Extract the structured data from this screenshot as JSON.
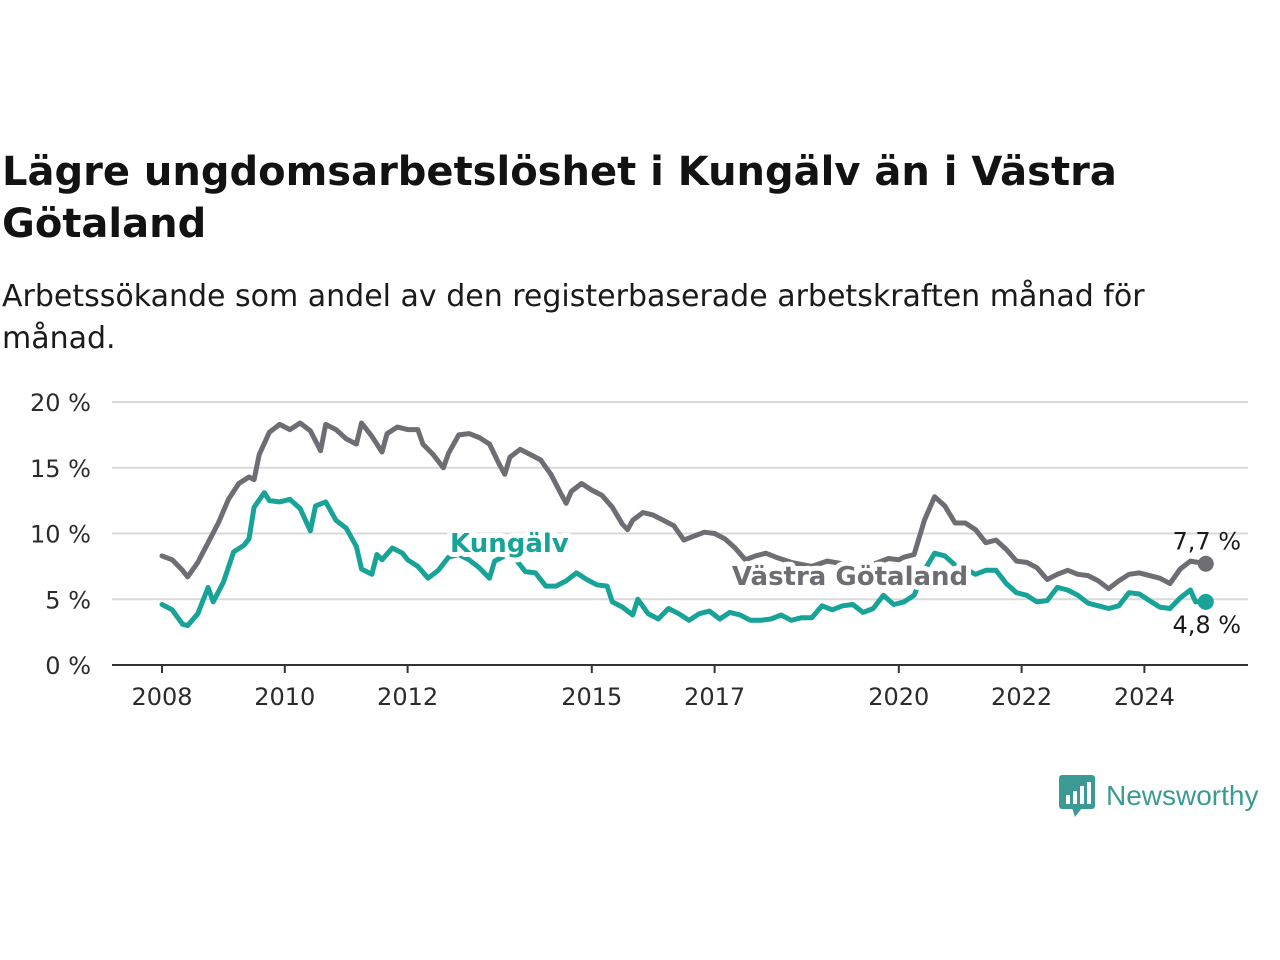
{
  "title": "Lägre ungdomsarbetslöshet i Kungälv än i Västra Götaland",
  "subtitle": "Arbetssökande som andel av den registerbaserade arbetskraften månad för månad.",
  "brand": {
    "name": "Newsworthy",
    "icon": "newsworthy-logo-icon",
    "color": "#3b9b94"
  },
  "chart_data": {
    "type": "line",
    "title": "Lägre ungdomsarbetslöshet i Kungälv än i Västra Götaland",
    "subtitle": "Arbetssökande som andel av den registerbaserade arbetskraften månad för månad.",
    "xlabel": "",
    "ylabel": "",
    "xlim": [
      "2008-01",
      "2025-09"
    ],
    "ylim": [
      0,
      20
    ],
    "grid": true,
    "x_ticks": [
      {
        "x": "2008-01",
        "label": "2008"
      },
      {
        "x": "2010-01",
        "label": "2010"
      },
      {
        "x": "2012-01",
        "label": "2012"
      },
      {
        "x": "2015-01",
        "label": "2015"
      },
      {
        "x": "2017-01",
        "label": "2017"
      },
      {
        "x": "2020-01",
        "label": "2020"
      },
      {
        "x": "2022-01",
        "label": "2022"
      },
      {
        "x": "2024-01",
        "label": "2024"
      }
    ],
    "y_ticks": [
      {
        "v": 0,
        "label": "0 %"
      },
      {
        "v": 5,
        "label": "5 %"
      },
      {
        "v": 10,
        "label": "10 %"
      },
      {
        "v": 15,
        "label": "15 %"
      },
      {
        "v": 20,
        "label": "20 %"
      }
    ],
    "series": [
      {
        "name": "Västra Götaland",
        "color": "#6e6d73",
        "end_label": "7,7 %",
        "points": [
          [
            "2008-01",
            8.3
          ],
          [
            "2008-03",
            8.0
          ],
          [
            "2008-05",
            7.2
          ],
          [
            "2008-06",
            6.7
          ],
          [
            "2008-08",
            7.8
          ],
          [
            "2008-10",
            9.3
          ],
          [
            "2008-12",
            10.8
          ],
          [
            "2009-02",
            12.6
          ],
          [
            "2009-04",
            13.8
          ],
          [
            "2009-06",
            14.3
          ],
          [
            "2009-07",
            14.1
          ],
          [
            "2009-08",
            16.0
          ],
          [
            "2009-10",
            17.7
          ],
          [
            "2009-12",
            18.3
          ],
          [
            "2010-02",
            17.9
          ],
          [
            "2010-04",
            18.4
          ],
          [
            "2010-06",
            17.8
          ],
          [
            "2010-08",
            16.3
          ],
          [
            "2010-09",
            18.3
          ],
          [
            "2010-11",
            17.9
          ],
          [
            "2011-01",
            17.2
          ],
          [
            "2011-03",
            16.8
          ],
          [
            "2011-04",
            18.4
          ],
          [
            "2011-06",
            17.4
          ],
          [
            "2011-08",
            16.2
          ],
          [
            "2011-09",
            17.6
          ],
          [
            "2011-11",
            18.1
          ],
          [
            "2012-01",
            17.9
          ],
          [
            "2012-03",
            17.9
          ],
          [
            "2012-04",
            16.8
          ],
          [
            "2012-06",
            16.0
          ],
          [
            "2012-08",
            15.0
          ],
          [
            "2012-09",
            16.1
          ],
          [
            "2012-11",
            17.5
          ],
          [
            "2013-01",
            17.6
          ],
          [
            "2013-03",
            17.3
          ],
          [
            "2013-05",
            16.8
          ],
          [
            "2013-07",
            15.2
          ],
          [
            "2013-08",
            14.5
          ],
          [
            "2013-09",
            15.8
          ],
          [
            "2013-11",
            16.4
          ],
          [
            "2014-01",
            16.0
          ],
          [
            "2014-03",
            15.6
          ],
          [
            "2014-05",
            14.5
          ],
          [
            "2014-07",
            13.0
          ],
          [
            "2014-08",
            12.3
          ],
          [
            "2014-09",
            13.2
          ],
          [
            "2014-11",
            13.8
          ],
          [
            "2015-01",
            13.3
          ],
          [
            "2015-03",
            12.9
          ],
          [
            "2015-05",
            12.0
          ],
          [
            "2015-07",
            10.7
          ],
          [
            "2015-08",
            10.3
          ],
          [
            "2015-09",
            11.0
          ],
          [
            "2015-11",
            11.6
          ],
          [
            "2016-01",
            11.4
          ],
          [
            "2016-03",
            11.0
          ],
          [
            "2016-05",
            10.6
          ],
          [
            "2016-07",
            9.5
          ],
          [
            "2016-09",
            9.8
          ],
          [
            "2016-11",
            10.1
          ],
          [
            "2017-01",
            10.0
          ],
          [
            "2017-03",
            9.6
          ],
          [
            "2017-05",
            8.9
          ],
          [
            "2017-07",
            8.0
          ],
          [
            "2017-09",
            8.3
          ],
          [
            "2017-11",
            8.5
          ],
          [
            "2018-01",
            8.2
          ],
          [
            "2018-04",
            7.8
          ],
          [
            "2018-08",
            7.5
          ],
          [
            "2018-11",
            7.9
          ],
          [
            "2019-02",
            7.7
          ],
          [
            "2019-06",
            7.4
          ],
          [
            "2019-09",
            7.8
          ],
          [
            "2019-11",
            8.1
          ],
          [
            "2020-01",
            8.0
          ],
          [
            "2020-02",
            8.2
          ],
          [
            "2020-04",
            8.4
          ],
          [
            "2020-06",
            11.0
          ],
          [
            "2020-08",
            12.8
          ],
          [
            "2020-10",
            12.1
          ],
          [
            "2020-12",
            10.8
          ],
          [
            "2021-02",
            10.8
          ],
          [
            "2021-04",
            10.3
          ],
          [
            "2021-06",
            9.3
          ],
          [
            "2021-08",
            9.5
          ],
          [
            "2021-10",
            8.8
          ],
          [
            "2021-12",
            7.9
          ],
          [
            "2022-02",
            7.8
          ],
          [
            "2022-04",
            7.4
          ],
          [
            "2022-06",
            6.5
          ],
          [
            "2022-08",
            6.9
          ],
          [
            "2022-10",
            7.2
          ],
          [
            "2022-12",
            6.9
          ],
          [
            "2023-02",
            6.8
          ],
          [
            "2023-04",
            6.4
          ],
          [
            "2023-06",
            5.8
          ],
          [
            "2023-08",
            6.4
          ],
          [
            "2023-10",
            6.9
          ],
          [
            "2023-12",
            7.0
          ],
          [
            "2024-02",
            6.8
          ],
          [
            "2024-04",
            6.6
          ],
          [
            "2024-06",
            6.2
          ],
          [
            "2024-08",
            7.3
          ],
          [
            "2024-10",
            7.9
          ],
          [
            "2025-01",
            7.7
          ]
        ]
      },
      {
        "name": "Kungälv",
        "color": "#17a398",
        "end_label": "4,8 %",
        "points": [
          [
            "2008-01",
            4.6
          ],
          [
            "2008-03",
            4.2
          ],
          [
            "2008-05",
            3.1
          ],
          [
            "2008-06",
            3.0
          ],
          [
            "2008-08",
            3.9
          ],
          [
            "2008-10",
            5.9
          ],
          [
            "2008-11",
            4.8
          ],
          [
            "2009-01",
            6.3
          ],
          [
            "2009-03",
            8.6
          ],
          [
            "2009-05",
            9.1
          ],
          [
            "2009-06",
            9.6
          ],
          [
            "2009-07",
            12.0
          ],
          [
            "2009-09",
            13.1
          ],
          [
            "2009-10",
            12.5
          ],
          [
            "2009-12",
            12.4
          ],
          [
            "2010-02",
            12.6
          ],
          [
            "2010-04",
            11.9
          ],
          [
            "2010-06",
            10.2
          ],
          [
            "2010-07",
            12.1
          ],
          [
            "2010-09",
            12.4
          ],
          [
            "2010-11",
            11.0
          ],
          [
            "2011-01",
            10.4
          ],
          [
            "2011-03",
            9.0
          ],
          [
            "2011-04",
            7.3
          ],
          [
            "2011-06",
            6.9
          ],
          [
            "2011-07",
            8.4
          ],
          [
            "2011-08",
            8.0
          ],
          [
            "2011-10",
            8.9
          ],
          [
            "2011-12",
            8.5
          ],
          [
            "2012-01",
            8.0
          ],
          [
            "2012-03",
            7.5
          ],
          [
            "2012-05",
            6.6
          ],
          [
            "2012-07",
            7.2
          ],
          [
            "2012-09",
            8.2
          ],
          [
            "2012-11",
            8.4
          ],
          [
            "2013-01",
            8.0
          ],
          [
            "2013-03",
            7.4
          ],
          [
            "2013-05",
            6.6
          ],
          [
            "2013-06",
            7.9
          ],
          [
            "2013-08",
            8.3
          ],
          [
            "2013-10",
            8.1
          ],
          [
            "2013-12",
            7.1
          ],
          [
            "2014-02",
            7.0
          ],
          [
            "2014-04",
            6.0
          ],
          [
            "2014-06",
            6.0
          ],
          [
            "2014-08",
            6.4
          ],
          [
            "2014-10",
            7.0
          ],
          [
            "2014-12",
            6.5
          ],
          [
            "2015-02",
            6.1
          ],
          [
            "2015-04",
            6.0
          ],
          [
            "2015-05",
            4.8
          ],
          [
            "2015-07",
            4.4
          ],
          [
            "2015-09",
            3.8
          ],
          [
            "2015-10",
            5.0
          ],
          [
            "2015-12",
            3.9
          ],
          [
            "2016-02",
            3.5
          ],
          [
            "2016-04",
            4.3
          ],
          [
            "2016-06",
            3.9
          ],
          [
            "2016-08",
            3.4
          ],
          [
            "2016-10",
            3.9
          ],
          [
            "2016-12",
            4.1
          ],
          [
            "2017-02",
            3.5
          ],
          [
            "2017-04",
            4.0
          ],
          [
            "2017-06",
            3.8
          ],
          [
            "2017-08",
            3.4
          ],
          [
            "2017-10",
            3.4
          ],
          [
            "2017-12",
            3.5
          ],
          [
            "2018-02",
            3.8
          ],
          [
            "2018-04",
            3.4
          ],
          [
            "2018-06",
            3.6
          ],
          [
            "2018-08",
            3.6
          ],
          [
            "2018-10",
            4.5
          ],
          [
            "2018-12",
            4.2
          ],
          [
            "2019-02",
            4.5
          ],
          [
            "2019-04",
            4.6
          ],
          [
            "2019-06",
            4.0
          ],
          [
            "2019-08",
            4.3
          ],
          [
            "2019-10",
            5.3
          ],
          [
            "2019-12",
            4.6
          ],
          [
            "2020-02",
            4.8
          ],
          [
            "2020-04",
            5.3
          ],
          [
            "2020-06",
            7.2
          ],
          [
            "2020-08",
            8.5
          ],
          [
            "2020-10",
            8.3
          ],
          [
            "2020-12",
            7.6
          ],
          [
            "2021-02",
            7.3
          ],
          [
            "2021-04",
            6.9
          ],
          [
            "2021-06",
            7.2
          ],
          [
            "2021-08",
            7.2
          ],
          [
            "2021-10",
            6.2
          ],
          [
            "2021-12",
            5.5
          ],
          [
            "2022-02",
            5.3
          ],
          [
            "2022-04",
            4.8
          ],
          [
            "2022-06",
            4.9
          ],
          [
            "2022-08",
            5.9
          ],
          [
            "2022-10",
            5.7
          ],
          [
            "2022-12",
            5.3
          ],
          [
            "2023-02",
            4.7
          ],
          [
            "2023-04",
            4.5
          ],
          [
            "2023-06",
            4.3
          ],
          [
            "2023-08",
            4.5
          ],
          [
            "2023-10",
            5.5
          ],
          [
            "2023-12",
            5.4
          ],
          [
            "2024-02",
            4.9
          ],
          [
            "2024-04",
            4.4
          ],
          [
            "2024-06",
            4.3
          ],
          [
            "2024-08",
            5.1
          ],
          [
            "2024-10",
            5.7
          ],
          [
            "2024-11",
            4.8
          ],
          [
            "2025-01",
            4.8
          ]
        ]
      }
    ]
  }
}
